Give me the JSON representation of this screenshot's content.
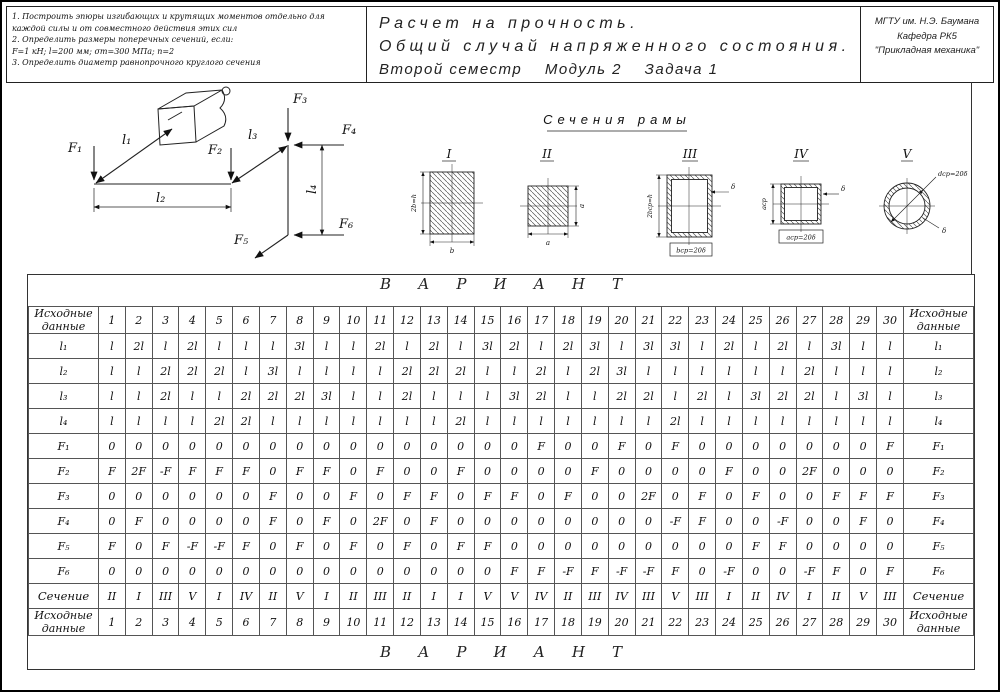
{
  "header": {
    "tasks": [
      "1. Построить эпюры изгибающих и крутящих моментов отдельно для каждой силы и от совместного действия этих сил",
      "2. Определить размеры поперечных сечений, если:",
      "F=1 кН;  l=200 мм;  σт=300 МПа;  n=2",
      "3. Определить диаметр равнопрочного круглого сечения"
    ],
    "title": {
      "line1": "Расчет на прочность.",
      "line2": "Общий случай напряженного состояния.",
      "line3": "Второй семестр    Модуль 2    Задача 1"
    },
    "org": {
      "line1": "МГТУ им. Н.Э. Баумана",
      "line2": "Кафедра РК5",
      "line3": "\"Прикладная механика\""
    }
  },
  "diagram": {
    "f1": "F₁",
    "f2": "F₂",
    "f3": "F₃",
    "f4": "F₄",
    "f5": "F₅",
    "f6": "F₆",
    "l1": "l₁",
    "l2": "l₂",
    "l3": "l₃",
    "l4": "l₄"
  },
  "sections": {
    "title": "Сечения рамы",
    "items": [
      {
        "numeral": "I",
        "dim_v": "2b=h",
        "dim_h": "b"
      },
      {
        "numeral": "II",
        "dim_v": "a",
        "dim_h": "a"
      },
      {
        "numeral": "III",
        "dim_v": "2bср=h",
        "dim_h": "bср=20δ",
        "wall": "δ"
      },
      {
        "numeral": "IV",
        "dim_v": "aср",
        "dim_h": "aср=20δ",
        "wall": "δ"
      },
      {
        "numeral": "V",
        "dim_d": "dср=20δ",
        "wall": "δ"
      }
    ]
  },
  "table": {
    "variant_banner": "ВАРИАНТ",
    "corner_label": "Исходные данные",
    "highlighted_column": "27",
    "columns": [
      "1",
      "2",
      "3",
      "4",
      "5",
      "6",
      "7",
      "8",
      "9",
      "10",
      "11",
      "12",
      "13",
      "14",
      "15",
      "16",
      "17",
      "18",
      "19",
      "20",
      "21",
      "22",
      "23",
      "24",
      "25",
      "26",
      "27",
      "28",
      "29",
      "30"
    ],
    "rows": [
      {
        "label": "l₁",
        "values": [
          "l",
          "2l",
          "l",
          "2l",
          "l",
          "l",
          "l",
          "3l",
          "l",
          "l",
          "2l",
          "l",
          "2l",
          "l",
          "3l",
          "2l",
          "l",
          "2l",
          "3l",
          "l",
          "3l",
          "3l",
          "l",
          "2l",
          "l",
          "2l",
          "l",
          "3l",
          "l",
          "l"
        ]
      },
      {
        "label": "l₂",
        "values": [
          "l",
          "l",
          "2l",
          "2l",
          "2l",
          "l",
          "3l",
          "l",
          "l",
          "l",
          "l",
          "2l",
          "2l",
          "2l",
          "l",
          "l",
          "2l",
          "l",
          "2l",
          "3l",
          "l",
          "l",
          "l",
          "l",
          "l",
          "l",
          "2l",
          "l",
          "l",
          "l"
        ]
      },
      {
        "label": "l₃",
        "values": [
          "l",
          "l",
          "2l",
          "l",
          "l",
          "2l",
          "2l",
          "2l",
          "3l",
          "l",
          "l",
          "2l",
          "l",
          "l",
          "l",
          "3l",
          "2l",
          "l",
          "l",
          "2l",
          "2l",
          "l",
          "2l",
          "l",
          "3l",
          "2l",
          "2l",
          "l",
          "3l",
          "l"
        ]
      },
      {
        "label": "l₄",
        "values": [
          "l",
          "l",
          "l",
          "l",
          "2l",
          "2l",
          "l",
          "l",
          "l",
          "l",
          "l",
          "l",
          "l",
          "2l",
          "l",
          "l",
          "l",
          "l",
          "l",
          "l",
          "l",
          "2l",
          "l",
          "l",
          "l",
          "l",
          "l",
          "l",
          "l",
          "l"
        ]
      },
      {
        "label": "F₁",
        "values": [
          "0",
          "0",
          "0",
          "0",
          "0",
          "0",
          "0",
          "0",
          "0",
          "0",
          "0",
          "0",
          "0",
          "0",
          "0",
          "0",
          "F",
          "0",
          "0",
          "F",
          "0",
          "F",
          "0",
          "0",
          "0",
          "0",
          "0",
          "0",
          "0",
          "F"
        ]
      },
      {
        "label": "F₂",
        "values": [
          "F",
          "2F",
          "-F",
          "F",
          "F",
          "F",
          "0",
          "F",
          "F",
          "0",
          "F",
          "0",
          "0",
          "F",
          "0",
          "0",
          "0",
          "0",
          "F",
          "0",
          "0",
          "0",
          "0",
          "F",
          "0",
          "0",
          "2F",
          "0",
          "0",
          "0"
        ]
      },
      {
        "label": "F₃",
        "values": [
          "0",
          "0",
          "0",
          "0",
          "0",
          "0",
          "F",
          "0",
          "0",
          "F",
          "0",
          "F",
          "F",
          "0",
          "F",
          "F",
          "0",
          "F",
          "0",
          "0",
          "2F",
          "0",
          "F",
          "0",
          "F",
          "0",
          "0",
          "F",
          "F",
          "F"
        ]
      },
      {
        "label": "F₄",
        "values": [
          "0",
          "F",
          "0",
          "0",
          "0",
          "0",
          "F",
          "0",
          "F",
          "0",
          "2F",
          "0",
          "F",
          "0",
          "0",
          "0",
          "0",
          "0",
          "0",
          "0",
          "0",
          "-F",
          "F",
          "0",
          "0",
          "-F",
          "0",
          "0",
          "F",
          "0"
        ]
      },
      {
        "label": "F₅",
        "values": [
          "F",
          "0",
          "F",
          "-F",
          "-F",
          "F",
          "0",
          "F",
          "0",
          "F",
          "0",
          "F",
          "0",
          "F",
          "F",
          "0",
          "0",
          "0",
          "0",
          "0",
          "0",
          "0",
          "0",
          "0",
          "F",
          "F",
          "0",
          "0",
          "0",
          "0"
        ]
      },
      {
        "label": "F₆",
        "values": [
          "0",
          "0",
          "0",
          "0",
          "0",
          "0",
          "0",
          "0",
          "0",
          "0",
          "0",
          "0",
          "0",
          "0",
          "0",
          "F",
          "F",
          "-F",
          "F",
          "-F",
          "-F",
          "F",
          "0",
          "-F",
          "0",
          "0",
          "-F",
          "F",
          "0",
          "F"
        ]
      },
      {
        "label": "Сечение",
        "values": [
          "II",
          "I",
          "III",
          "V",
          "I",
          "IV",
          "II",
          "V",
          "I",
          "II",
          "III",
          "II",
          "I",
          "I",
          "V",
          "V",
          "IV",
          "II",
          "III",
          "IV",
          "III",
          "V",
          "III",
          "I",
          "II",
          "IV",
          "I",
          "II",
          "V",
          "III"
        ]
      }
    ]
  },
  "colors": {
    "highlight": "#ff0000",
    "line": "#333333"
  }
}
